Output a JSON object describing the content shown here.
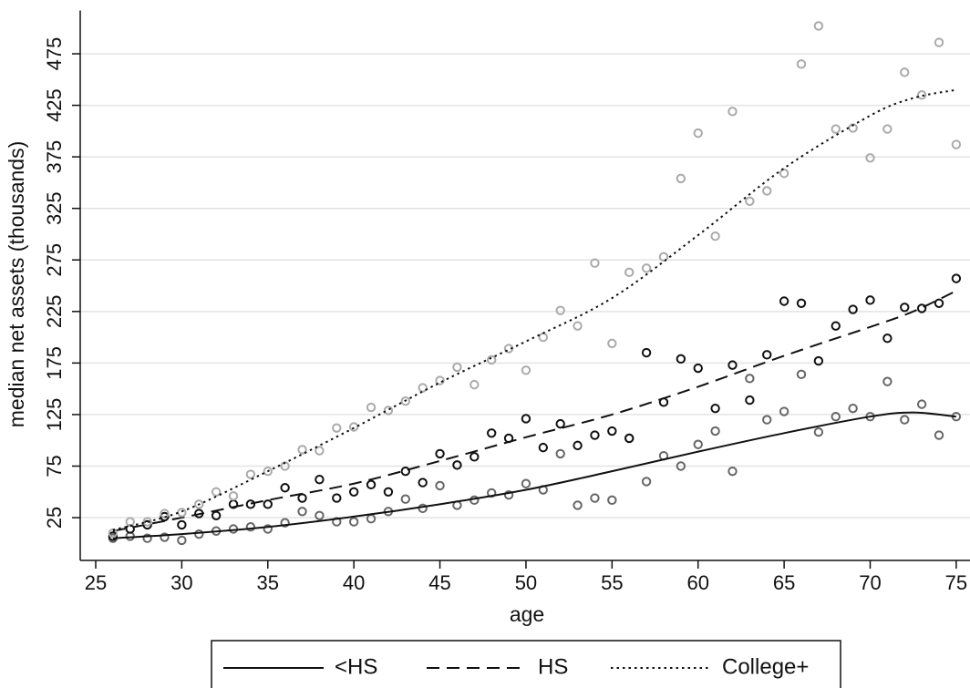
{
  "chart_data": {
    "type": "scatter",
    "x_label": "age",
    "y_label": "median net assets (thousands)",
    "xlim": [
      24.1,
      75.8
    ],
    "ylim": [
      -16.5,
      517
    ],
    "xticks": [
      25,
      30,
      35,
      40,
      45,
      50,
      55,
      60,
      65,
      70,
      75
    ],
    "yticks": [
      25,
      75,
      125,
      175,
      225,
      275,
      325,
      375,
      425,
      475
    ],
    "grid": true,
    "legend": "bottom",
    "x": [
      26,
      27,
      28,
      29,
      30,
      31,
      32,
      33,
      34,
      35,
      36,
      37,
      38,
      39,
      40,
      41,
      42,
      43,
      44,
      45,
      46,
      47,
      48,
      49,
      50,
      51,
      52,
      53,
      54,
      55,
      56,
      57,
      58,
      59,
      60,
      61,
      62,
      63,
      64,
      65,
      66,
      67,
      68,
      69,
      70,
      71,
      72,
      73,
      74,
      75
    ],
    "fit_x": [
      26,
      30,
      35,
      40,
      45,
      50,
      55,
      60,
      65,
      70,
      72.5,
      75
    ],
    "series": [
      {
        "name": "<HS",
        "color": "#666666",
        "line_style": "solid",
        "values": [
          5,
          7,
          5,
          6,
          3,
          9,
          12,
          14,
          16,
          14,
          20,
          31,
          27,
          21,
          21,
          24,
          31,
          43,
          34,
          56,
          37,
          42,
          49,
          47,
          58,
          52,
          87,
          37,
          44,
          42,
          102,
          60,
          85,
          75,
          96,
          109,
          70,
          160,
          120,
          128,
          164,
          108,
          123,
          131,
          123,
          157,
          120,
          135,
          105,
          123
        ],
        "fit": [
          5,
          9,
          16,
          26,
          38,
          52,
          70,
          89,
          107,
          123,
          127,
          123
        ]
      },
      {
        "name": "HS",
        "color": "#111111",
        "line_style": "dashed",
        "values": [
          7,
          14,
          18,
          26,
          18,
          29,
          27,
          38,
          38,
          38,
          54,
          44,
          62,
          44,
          50,
          57,
          50,
          70,
          59,
          87,
          76,
          84,
          107,
          102,
          121,
          93,
          116,
          95,
          105,
          109,
          102,
          185,
          137,
          179,
          170,
          131,
          173,
          139,
          183,
          235,
          233,
          177,
          211,
          227,
          236,
          199,
          229,
          228,
          233,
          257
        ],
        "fit": [
          12,
          25,
          42,
          58,
          80,
          103,
          125,
          152,
          182,
          210,
          225,
          245
        ]
      },
      {
        "name": "College+",
        "color": "#aaaaaa",
        "line_style": "dotted",
        "values": [
          10,
          21,
          21,
          29,
          30,
          38,
          50,
          46,
          67,
          70,
          75,
          91,
          90,
          112,
          113,
          132,
          129,
          138,
          151,
          158,
          171,
          154,
          178,
          189,
          168,
          200,
          226,
          211,
          272,
          194,
          263,
          267,
          278,
          354,
          398,
          298,
          419,
          332,
          342,
          359,
          465,
          502,
          402,
          403,
          374,
          402,
          457,
          435,
          486,
          387
        ],
        "fit": [
          13,
          31,
          70,
          112,
          156,
          196,
          238,
          299,
          364,
          415,
          432,
          440
        ]
      }
    ]
  }
}
